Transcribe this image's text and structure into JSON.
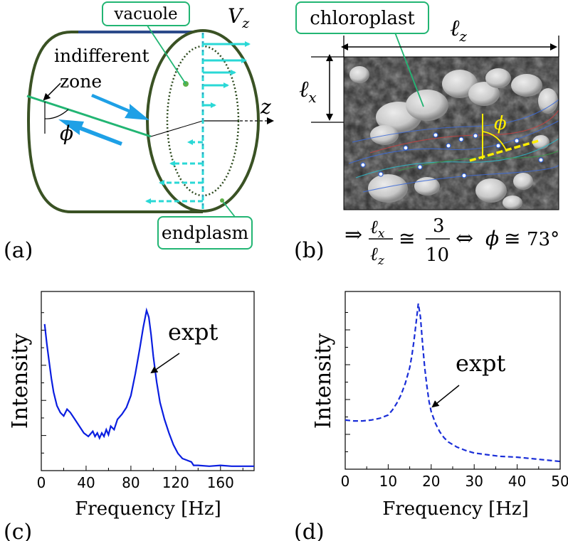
{
  "panel_labels": {
    "a": "(a)",
    "b": "(b)",
    "c": "(c)",
    "d": "(d)"
  },
  "diagram_a": {
    "vacuole_label": "vacuole",
    "endplasm_label": "endplasm",
    "indifferent_label_line1": "indifferent",
    "indifferent_label_line2": "zone",
    "angle_symbol": "ϕ",
    "velocity_label": "V",
    "velocity_sub": "z",
    "axis_label": "z",
    "colors": {
      "cylinder": "#3a5224",
      "callout": "#22b573",
      "cyan": "#2ad8d6",
      "blue_arrow": "#1ea0e6"
    }
  },
  "micrograph_b": {
    "chloroplast_label": "chloroplast",
    "lz_label": "ℓ",
    "lz_sub": "z",
    "lx_label": "ℓ",
    "lx_sub": "x",
    "phi_label": "ϕ",
    "ratio_lhs": "ℓx/ℓz",
    "ratio_value": "3/10",
    "phi_value": "73°",
    "colors": {
      "phi_marker": "#ffee00"
    }
  },
  "chart_data": [
    {
      "type": "line",
      "panel": "c",
      "xlabel": "Frequency [Hz]",
      "ylabel": "Intensity",
      "annotation": "expt",
      "xlim": [
        0,
        190
      ],
      "xticks": [
        0,
        40,
        80,
        120,
        160
      ],
      "ylim": [
        0,
        1
      ],
      "line_style": "solid",
      "color": "#0a1ee0",
      "x": [
        3,
        5,
        7,
        9,
        11,
        14,
        17,
        20,
        23,
        26,
        30,
        34,
        38,
        42,
        46,
        48,
        50,
        52,
        54,
        56,
        58,
        60,
        62,
        65,
        68,
        72,
        76,
        80,
        84,
        88,
        91,
        94,
        96,
        98,
        100,
        103,
        106,
        110,
        114,
        118,
        122,
        126,
        130,
        134,
        136,
        140,
        150,
        160,
        170,
        180,
        190
      ],
      "y": [
        0.84,
        0.72,
        0.62,
        0.52,
        0.44,
        0.36,
        0.32,
        0.3,
        0.34,
        0.32,
        0.28,
        0.24,
        0.2,
        0.18,
        0.21,
        0.18,
        0.2,
        0.17,
        0.2,
        0.18,
        0.22,
        0.19,
        0.24,
        0.22,
        0.28,
        0.31,
        0.35,
        0.42,
        0.55,
        0.7,
        0.82,
        0.92,
        0.88,
        0.78,
        0.65,
        0.5,
        0.38,
        0.28,
        0.2,
        0.13,
        0.08,
        0.05,
        0.04,
        0.03,
        0.01,
        0.01,
        0.005,
        0.01,
        0.005,
        0.005,
        0.005
      ]
    },
    {
      "type": "line",
      "panel": "d",
      "xlabel": "Frequency [Hz]",
      "ylabel": "Intensity",
      "annotation": "expt",
      "xlim": [
        0,
        50
      ],
      "xticks": [
        0,
        10,
        20,
        30,
        40,
        50
      ],
      "ylim": [
        0,
        1
      ],
      "line_style": "dashed",
      "color": "#1a2ed8",
      "x": [
        0,
        2,
        4,
        6,
        8,
        10,
        11,
        12,
        13,
        14,
        15,
        15.5,
        16,
        16.5,
        17,
        17.5,
        18,
        18.5,
        19,
        19.5,
        20,
        21,
        22,
        23,
        24,
        26,
        28,
        30,
        33,
        36,
        40,
        44,
        48,
        50
      ],
      "y": [
        0.27,
        0.265,
        0.265,
        0.27,
        0.28,
        0.3,
        0.33,
        0.37,
        0.42,
        0.49,
        0.58,
        0.65,
        0.74,
        0.85,
        0.96,
        0.88,
        0.72,
        0.58,
        0.47,
        0.38,
        0.32,
        0.25,
        0.2,
        0.165,
        0.14,
        0.11,
        0.09,
        0.075,
        0.065,
        0.055,
        0.05,
        0.04,
        0.03,
        0.025
      ]
    }
  ]
}
